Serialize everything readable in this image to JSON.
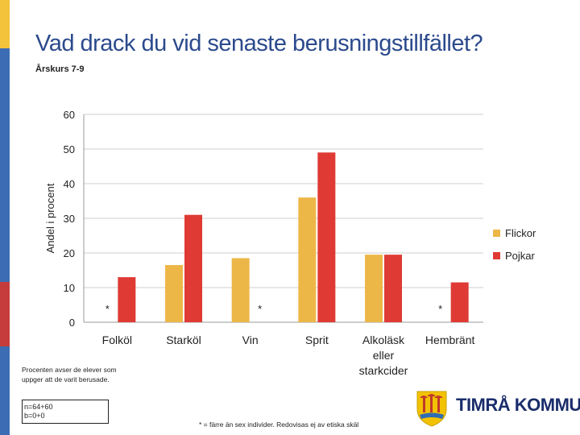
{
  "slide": {
    "title": "Vad drack du vid senaste berusningstillfället?",
    "subtitle": "Årskurs 7-9",
    "note_left": "Procenten avser de elever som uppger att de varit berusade.",
    "n_box": "n=64+60\nb=0+0",
    "footnote": "* = färre än sex individer. Redovisas ej av etiska skäl",
    "logo_text": "TIMRÅ KOMMUN",
    "side_colors": [
      "#f3c33b",
      "#3c6db4",
      "#c63c3c",
      "#3c6db4"
    ]
  },
  "chart_data": {
    "type": "bar",
    "title": "",
    "xlabel": "",
    "ylabel": "Andel i procent",
    "ylim": [
      0,
      60
    ],
    "yticks": [
      0,
      10,
      20,
      30,
      40,
      50,
      60
    ],
    "grid": true,
    "legend_position": "right",
    "categories": [
      "Folköl",
      "Starköl",
      "Vin",
      "Sprit",
      "Alkoläsk eller starkcider",
      "Hembränt"
    ],
    "series": [
      {
        "name": "Flickor",
        "color": "#edb748",
        "values": [
          null,
          16.5,
          18.5,
          36,
          19.5,
          null
        ]
      },
      {
        "name": "Pojkar",
        "color": "#df3a34",
        "values": [
          13,
          31,
          null,
          49,
          19.5,
          11.5
        ]
      }
    ],
    "annotations": [
      {
        "text": "*",
        "category": 0,
        "series": "Flickor"
      },
      {
        "text": "*",
        "category": 2,
        "series": "Pojkar"
      },
      {
        "text": "*",
        "category": 5,
        "series": "Flickor"
      }
    ]
  }
}
